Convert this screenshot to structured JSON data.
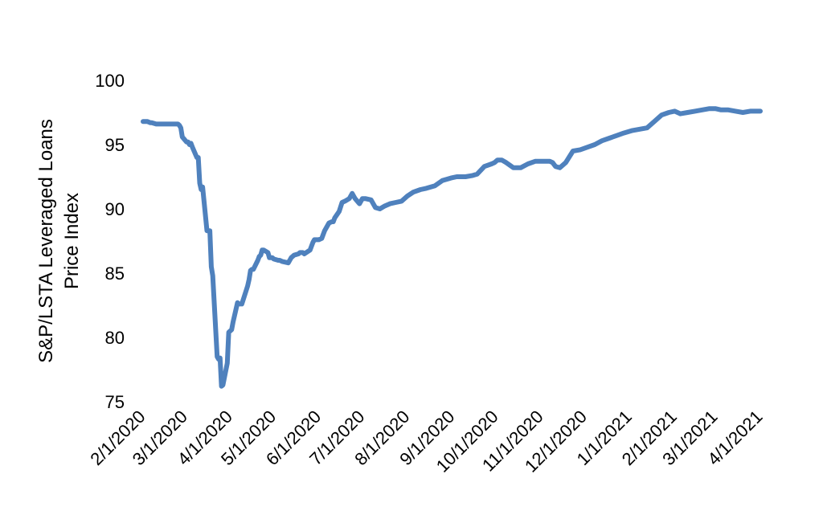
{
  "chart_data": {
    "type": "line",
    "title": "",
    "xlabel": "",
    "ylabel": [
      "S&P/LSTA Leveraged Loans",
      "Price Index"
    ],
    "ylim": [
      75,
      100
    ],
    "yticks": [
      75,
      80,
      85,
      90,
      95,
      100
    ],
    "ytick_labels": [
      "75",
      "80",
      "85",
      "90",
      "95",
      "100"
    ],
    "xlim": [
      "2020-02-01",
      "2021-04-01"
    ],
    "xticks": [
      "2020-02-01",
      "2020-03-01",
      "2020-04-01",
      "2020-05-01",
      "2020-06-01",
      "2020-07-01",
      "2020-08-01",
      "2020-09-01",
      "2020-10-01",
      "2020-11-01",
      "2020-12-01",
      "2021-01-01",
      "2021-02-01",
      "2021-03-01",
      "2021-04-01"
    ],
    "xtick_labels": [
      "2/1/2020",
      "3/1/2020",
      "4/1/2020",
      "5/1/2020",
      "6/1/2020",
      "7/1/2020",
      "8/1/2020",
      "9/1/2020",
      "10/1/2020",
      "11/1/2020",
      "12/1/2020",
      "1/1/2021",
      "2/1/2021",
      "3/1/2021",
      "4/1/2021"
    ],
    "grid": false,
    "legend": "none",
    "line_color": "#4F81BD",
    "series": [
      {
        "x": [
          "2020-02-01",
          "2020-02-04",
          "2020-02-06",
          "2020-02-07",
          "2020-02-10",
          "2020-02-14",
          "2020-02-20",
          "2020-02-25",
          "2020-02-26",
          "2020-02-27",
          "2020-02-28",
          "2020-03-02",
          "2020-03-03",
          "2020-03-04",
          "2020-03-05",
          "2020-03-06",
          "2020-03-09",
          "2020-03-10",
          "2020-03-11",
          "2020-03-12",
          "2020-03-13",
          "2020-03-16",
          "2020-03-17",
          "2020-03-18",
          "2020-03-19",
          "2020-03-20",
          "2020-03-23",
          "2020-03-24",
          "2020-03-25",
          "2020-03-26",
          "2020-03-27",
          "2020-03-30",
          "2020-03-31",
          "2020-04-01",
          "2020-04-02",
          "2020-04-03",
          "2020-04-06",
          "2020-04-07",
          "2020-04-08",
          "2020-04-09",
          "2020-04-13",
          "2020-04-14",
          "2020-04-15",
          "2020-04-16",
          "2020-04-17",
          "2020-04-20",
          "2020-04-21",
          "2020-04-22",
          "2020-04-23",
          "2020-04-24",
          "2020-04-27",
          "2020-04-28",
          "2020-04-29",
          "2020-04-30",
          "2020-05-01",
          "2020-05-04",
          "2020-05-05",
          "2020-05-07",
          "2020-05-11",
          "2020-05-13",
          "2020-05-15",
          "2020-05-18",
          "2020-05-19",
          "2020-05-21",
          "2020-05-22",
          "2020-05-26",
          "2020-05-28",
          "2020-05-29",
          "2020-06-01",
          "2020-06-03",
          "2020-06-05",
          "2020-06-08",
          "2020-06-10",
          "2020-06-11",
          "2020-06-12",
          "2020-06-15",
          "2020-06-17",
          "2020-06-19",
          "2020-06-22",
          "2020-06-24",
          "2020-06-26",
          "2020-06-29",
          "2020-07-01",
          "2020-07-03",
          "2020-07-07",
          "2020-07-10",
          "2020-07-13",
          "2020-07-16",
          "2020-07-20",
          "2020-07-24",
          "2020-07-28",
          "2020-08-01",
          "2020-08-05",
          "2020-08-10",
          "2020-08-14",
          "2020-08-20",
          "2020-08-25",
          "2020-08-31",
          "2020-09-04",
          "2020-09-10",
          "2020-09-15",
          "2020-09-18",
          "2020-09-23",
          "2020-09-28",
          "2020-09-30",
          "2020-10-02",
          "2020-10-05",
          "2020-10-08",
          "2020-10-13",
          "2020-10-18",
          "2020-10-23",
          "2020-10-28",
          "2020-11-01",
          "2020-11-02",
          "2020-11-04",
          "2020-11-07",
          "2020-11-09",
          "2020-11-11",
          "2020-11-14",
          "2020-11-18",
          "2020-11-23",
          "2020-11-28",
          "2020-12-03",
          "2020-12-08",
          "2020-12-13",
          "2020-12-18",
          "2020-12-23",
          "2020-12-28",
          "2021-01-03",
          "2021-01-08",
          "2021-01-13",
          "2021-01-18",
          "2021-01-23",
          "2021-01-28",
          "2021-02-01",
          "2021-02-05",
          "2021-02-10",
          "2021-02-15",
          "2021-02-20",
          "2021-02-25",
          "2021-03-01",
          "2021-03-05",
          "2021-03-10",
          "2021-03-15",
          "2021-03-20",
          "2021-03-25",
          "2021-04-01"
        ],
        "values": [
          96.8,
          96.8,
          96.7,
          96.7,
          96.6,
          96.6,
          96.6,
          96.6,
          96.5,
          96.3,
          95.6,
          95.2,
          95.2,
          95.0,
          95.1,
          94.8,
          94.0,
          94.0,
          92.0,
          91.5,
          91.7,
          88.3,
          88.3,
          88.3,
          85.5,
          84.8,
          78.5,
          78.3,
          78.4,
          76.2,
          76.3,
          78.0,
          80.4,
          80.5,
          80.6,
          81.2,
          82.7,
          82.6,
          82.6,
          82.6,
          84.0,
          84.5,
          85.2,
          85.3,
          85.3,
          86.0,
          86.3,
          86.4,
          86.8,
          86.8,
          86.6,
          86.2,
          86.2,
          86.2,
          86.1,
          86.0,
          86.0,
          85.9,
          85.8,
          86.2,
          86.4,
          86.5,
          86.6,
          86.6,
          86.5,
          86.8,
          87.4,
          87.6,
          87.6,
          87.7,
          88.3,
          88.9,
          89.0,
          89.0,
          89.3,
          89.8,
          90.5,
          90.6,
          90.8,
          91.2,
          90.8,
          90.4,
          90.8,
          90.8,
          90.7,
          90.1,
          90.0,
          90.2,
          90.4,
          90.5,
          90.6,
          91.0,
          91.3,
          91.5,
          91.6,
          91.8,
          92.2,
          92.4,
          92.5,
          92.5,
          92.6,
          92.7,
          93.3,
          93.5,
          93.6,
          93.8,
          93.8,
          93.6,
          93.2,
          93.2,
          93.5,
          93.7,
          93.7,
          93.7,
          93.7,
          93.7,
          93.6,
          93.3,
          93.2,
          93.6,
          94.5,
          94.6,
          94.8,
          95.0,
          95.3,
          95.5,
          95.7,
          95.9,
          96.1,
          96.2,
          96.3,
          96.8,
          97.3,
          97.5,
          97.6,
          97.4,
          97.5,
          97.6,
          97.7,
          97.8,
          97.8,
          97.7,
          97.7,
          97.6,
          97.5,
          97.6,
          97.6
        ]
      }
    ]
  }
}
